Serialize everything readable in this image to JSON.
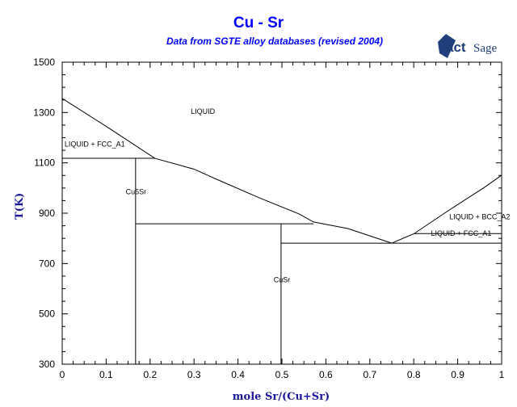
{
  "chart_data": {
    "type": "line",
    "title": "Cu - Sr",
    "subtitle": "Data from SGTE alloy databases (revised 2004)",
    "logo_text": "FactSage",
    "xlabel": "mole Sr/(Cu+Sr)",
    "ylabel": "T(K)",
    "xlim": [
      0,
      1
    ],
    "ylim": [
      300,
      1500
    ],
    "xticks": [
      "0",
      "0.1",
      "0.2",
      "0.3",
      "0.4",
      "0.5",
      "0.6",
      "0.7",
      "0.8",
      "0.9",
      "1"
    ],
    "yticks": [
      "300",
      "500",
      "700",
      "900",
      "1100",
      "1300",
      "1500"
    ],
    "grid": false,
    "colors": {
      "title": "#0000ff",
      "axis_label": "#1a1a9a",
      "lines": "#000000"
    },
    "series": [
      {
        "points": [
          [
            0,
            1356
          ],
          [
            0.1,
            1245
          ],
          [
            0.211,
            1118
          ],
          [
            0.3,
            1075
          ],
          [
            0.355,
            1032
          ],
          [
            0.45,
            960
          ],
          [
            0.539,
            897
          ],
          [
            0.572,
            865
          ],
          [
            0.65,
            839
          ],
          [
            0.75,
            781
          ]
        ]
      },
      {
        "points": [
          [
            0.75,
            781
          ],
          [
            0.801,
            819
          ],
          [
            0.875,
            906
          ],
          [
            0.961,
            1003
          ],
          [
            1,
            1051
          ]
        ]
      },
      {
        "points": [
          [
            0,
            1118
          ],
          [
            0.211,
            1118
          ]
        ]
      },
      {
        "points": [
          [
            0.167,
            1118
          ],
          [
            0.167,
            300
          ]
        ]
      },
      {
        "points": [
          [
            0.167,
            858
          ],
          [
            0.572,
            858
          ]
        ]
      },
      {
        "points": [
          [
            0.498,
            858
          ],
          [
            0.498,
            300
          ]
        ]
      },
      {
        "points": [
          [
            0.498,
            781
          ],
          [
            1,
            781
          ]
        ]
      },
      {
        "points": [
          [
            0.801,
            819
          ],
          [
            1,
            819
          ]
        ]
      }
    ],
    "annotations": [
      {
        "text": "LIQUID",
        "x": 0.32,
        "y": 1305
      },
      {
        "text": "LIQUID + FCC_A1",
        "x": 0.074,
        "y": 1175
      },
      {
        "text": "Cu5Sr",
        "x": 0.168,
        "y": 985
      },
      {
        "text": "CuSr",
        "x": 0.5,
        "y": 635
      },
      {
        "text": "LIQUID + BCC_A2",
        "x": 0.95,
        "y": 885
      },
      {
        "text": "LIQUID + FCC_A1",
        "x": 0.908,
        "y": 820
      }
    ]
  }
}
